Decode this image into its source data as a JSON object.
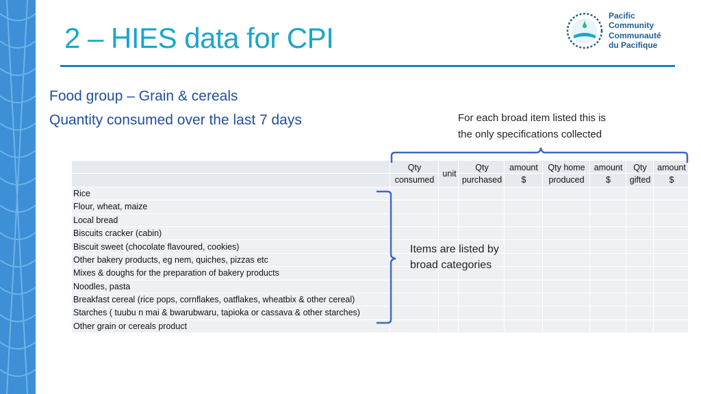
{
  "slide": {
    "title": "2 – HIES data for CPI",
    "subtitle_line1": "Food group – Grain & cereals",
    "subtitle_line2": "Quantity consumed over the last 7 days"
  },
  "logo": {
    "lines": [
      "Pacific",
      "Community",
      "Communauté",
      "du Pacifique"
    ],
    "icon": "pacific-community-seal"
  },
  "callout_top": {
    "line1": "For each broad item listed this is",
    "line2": "the only specifications collected"
  },
  "callout_side": {
    "line1": "Items are listed by",
    "line2": "broad categories"
  },
  "table": {
    "columns": [
      {
        "line1": "Qty",
        "line2": "consumed"
      },
      {
        "line1": "unit",
        "line2": ""
      },
      {
        "line1": "Qty",
        "line2": "purchased"
      },
      {
        "line1": "amount",
        "line2": "$"
      },
      {
        "line1": "Qty home",
        "line2": "produced"
      },
      {
        "line1": "amount",
        "line2": "$"
      },
      {
        "line1": "Qty",
        "line2": "gifted"
      },
      {
        "line1": "amount",
        "line2": "$"
      }
    ],
    "rows": [
      "Rice",
      "Flour, wheat, maize",
      "Local bread",
      "Biscuits cracker (cabin)",
      "Biscuit sweet (chocolate flavoured, cookies)",
      "Other bakery products, eg nem, quiches, pizzas etc",
      "Mixes & doughs for the preparation of bakery products",
      "Noodles, pasta",
      "Breakfast cereal (rice pops, cornflakes, oatflakes, wheatbix & other cereal)",
      "Starches ( tuubu n mai & bwarubwaru, tapioka or cassava  & other starches)",
      "Other grain or cereals product"
    ]
  },
  "colors": {
    "title": "#1aa6c9",
    "subtitle": "#1f4e9a",
    "rule": "#1a7fc4",
    "brace": "#3a68c8",
    "side_band": "#3d8fd6",
    "table_fill": "#eef0f3"
  }
}
